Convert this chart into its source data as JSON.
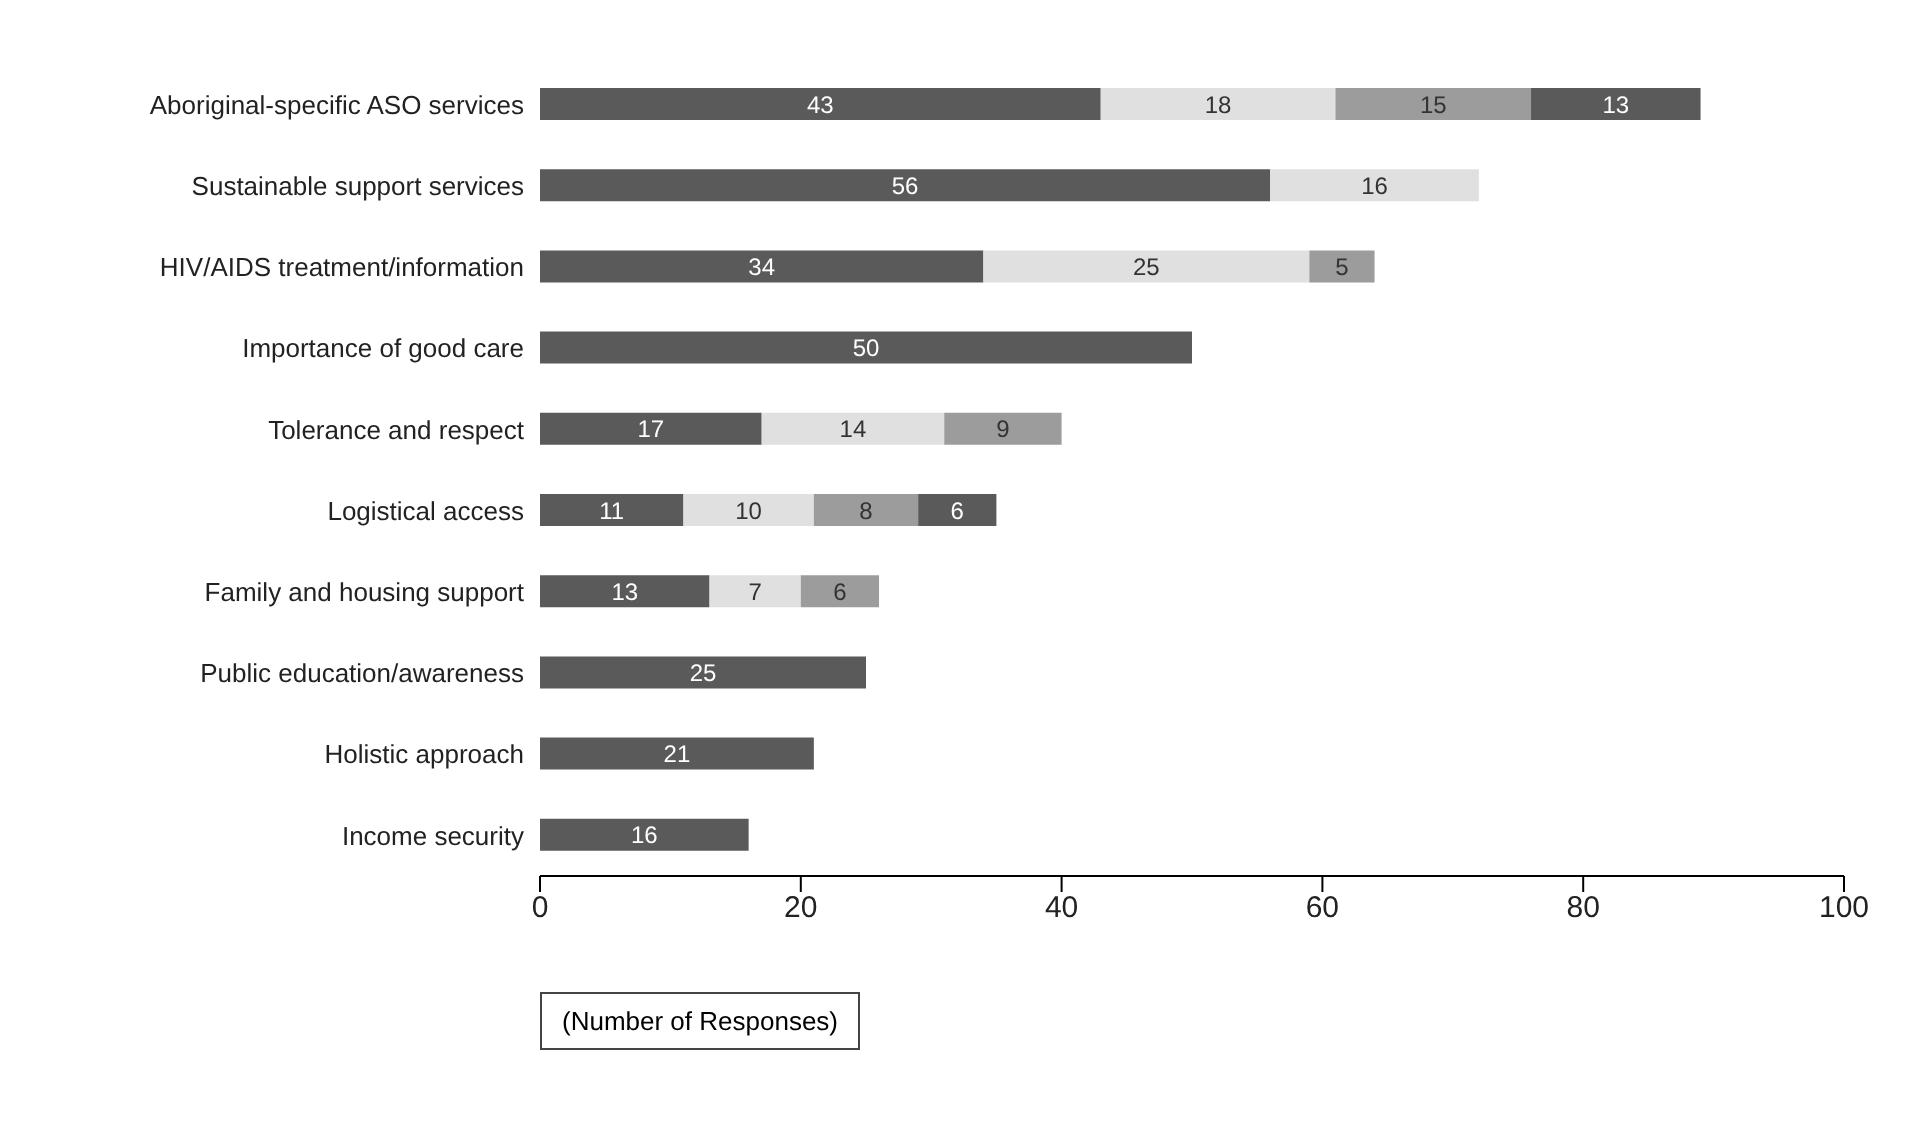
{
  "chart_data": {
    "type": "bar",
    "orientation": "horizontal",
    "stacked": true,
    "data_labels": true,
    "grid": false,
    "legend": false,
    "xlabel": "(Number of Responses)",
    "categories": [
      "Aboriginal-specific ASO services",
      "Sustainable support services",
      "HIV/AIDS treatment/information",
      "Importance of good care",
      "Tolerance and respect",
      "Logistical access",
      "Family and housing support",
      "Public education/awareness",
      "Holistic approach",
      "Income security"
    ],
    "series": [
      {
        "color": "#5a5a5a",
        "values": [
          43,
          56,
          34,
          50,
          17,
          11,
          13,
          25,
          21,
          16
        ]
      },
      {
        "color": "#e0e0e0",
        "values": [
          18,
          16,
          25,
          null,
          14,
          10,
          7,
          null,
          null,
          null
        ]
      },
      {
        "color": "#9c9c9c",
        "values": [
          15,
          null,
          5,
          null,
          9,
          8,
          6,
          null,
          null,
          null
        ]
      },
      {
        "color": "#5a5a5a",
        "values": [
          13,
          null,
          null,
          null,
          null,
          6,
          null,
          null,
          null,
          null
        ]
      }
    ],
    "xlim": [
      0,
      100
    ],
    "xticks": [
      0,
      20,
      40,
      60,
      80,
      100
    ]
  }
}
